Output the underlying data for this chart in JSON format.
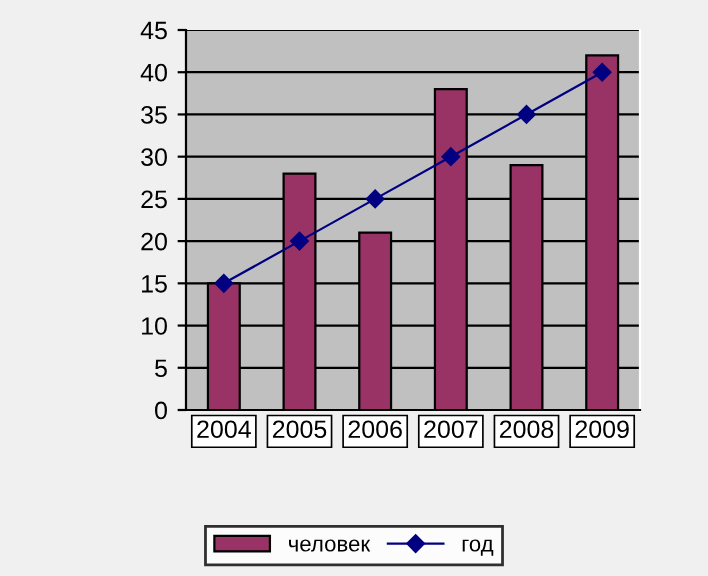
{
  "chart_data": {
    "type": "bar",
    "categories": [
      "2004",
      "2005",
      "2006",
      "2007",
      "2008",
      "2009"
    ],
    "series": [
      {
        "name": "человек",
        "color": "#993366",
        "values": [
          15,
          28,
          21,
          38,
          29,
          42
        ]
      },
      {
        "name": "год",
        "type": "line",
        "color": "#000080",
        "marker": "diamond",
        "values": [
          15,
          20,
          25,
          30,
          35,
          40
        ]
      }
    ],
    "ylim": [
      0,
      45
    ],
    "yticks": [
      0,
      5,
      10,
      15,
      20,
      25,
      30,
      35,
      40,
      45
    ],
    "grid": "y",
    "legend": "bottom"
  }
}
